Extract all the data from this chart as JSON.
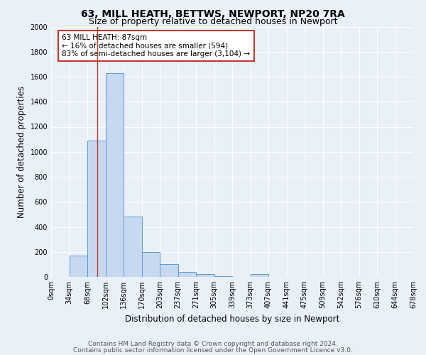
{
  "title": "63, MILL HEATH, BETTWS, NEWPORT, NP20 7RA",
  "subtitle": "Size of property relative to detached houses in Newport",
  "xlabel": "Distribution of detached houses by size in Newport",
  "ylabel": "Number of detached properties",
  "bin_labels": [
    "0sqm",
    "34sqm",
    "68sqm",
    "102sqm",
    "136sqm",
    "170sqm",
    "203sqm",
    "237sqm",
    "271sqm",
    "305sqm",
    "339sqm",
    "373sqm",
    "407sqm",
    "441sqm",
    "475sqm",
    "509sqm",
    "542sqm",
    "576sqm",
    "610sqm",
    "644sqm",
    "678sqm"
  ],
  "bar_heights": [
    0,
    170,
    1090,
    1630,
    480,
    200,
    100,
    40,
    20,
    5,
    0,
    20,
    0,
    0,
    0,
    0,
    0,
    0,
    0,
    0
  ],
  "bar_color": "#c6d9f0",
  "bar_edge_color": "#5b9bd5",
  "property_line_x": 87,
  "property_line_color": "#c0392b",
  "annotation_line1": "63 MILL HEATH: 87sqm",
  "annotation_line2": "← 16% of detached houses are smaller (594)",
  "annotation_line3": "83% of semi-detached houses are larger (3,104) →",
  "annotation_box_color": "#ffffff",
  "annotation_box_edge_color": "#c0392b",
  "ylim": [
    0,
    2000
  ],
  "yticks": [
    0,
    200,
    400,
    600,
    800,
    1000,
    1200,
    1400,
    1600,
    1800,
    2000
  ],
  "bg_color": "#eaf0f8",
  "footer1": "Contains HM Land Registry data © Crown copyright and database right 2024.",
  "footer2": "Contains public sector information licensed under the Open Government Licence v3.0.",
  "title_fontsize": 10,
  "subtitle_fontsize": 9,
  "axis_label_fontsize": 8.5,
  "tick_fontsize": 7,
  "annotation_fontsize": 7.5,
  "footer_fontsize": 6.5
}
